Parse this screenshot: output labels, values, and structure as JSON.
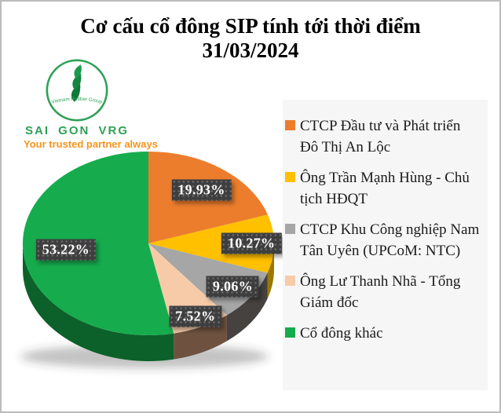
{
  "title": {
    "line1": "Cơ cấu cổ đông SIP tính tới thời điểm",
    "line2": "31/03/2024"
  },
  "logo": {
    "circle_text": "Vietnam Rubber Group",
    "name": "SAI GON VRG",
    "tagline": "Your trusted partner always",
    "green": "#2fa156",
    "orange": "#f7941d"
  },
  "chart_data": {
    "type": "pie",
    "title": "Cơ cấu cổ đông SIP tính tới thời điểm 31/03/2024",
    "effect": "3d",
    "start_angle_deg": 0,
    "direction": "clockwise",
    "legend_position": "right",
    "label_box_color": "#3e3e3e",
    "label_text_color": "#ffffff",
    "slices": [
      {
        "label": "CTCP Đầu tư và Phát triển Đô Thị An Lộc",
        "value": 19.93,
        "display": "19.93%",
        "color": "#ec7d2d",
        "side_color": "#a85a1e",
        "label_radius": 0.72
      },
      {
        "label": "Ông Trần Mạnh Hùng - Chủ tịch HĐQT",
        "value": 10.27,
        "display": "10.27%",
        "color": "#ffc000",
        "side_color": "#9a7800",
        "label_radius": 0.82
      },
      {
        "label": "CTCP Khu Công nghiệp Nam Tân Uyên (UPCoM: NTC)",
        "value": 9.06,
        "display": "9.06%",
        "color": "#a6a6a6",
        "side_color": "#464240",
        "label_radius": 0.82
      },
      {
        "label": "Ông Lư Thanh Nhã - Tổng Giám đốc",
        "value": 7.52,
        "display": "7.52%",
        "color": "#f7cba8",
        "side_color": "#6e523f",
        "label_radius": 0.88
      },
      {
        "label": "Cổ đông khác",
        "value": 53.22,
        "display": "53.22%",
        "color": "#16ac4d",
        "side_color": "#0b6129",
        "label_radius": 0.66
      }
    ]
  }
}
